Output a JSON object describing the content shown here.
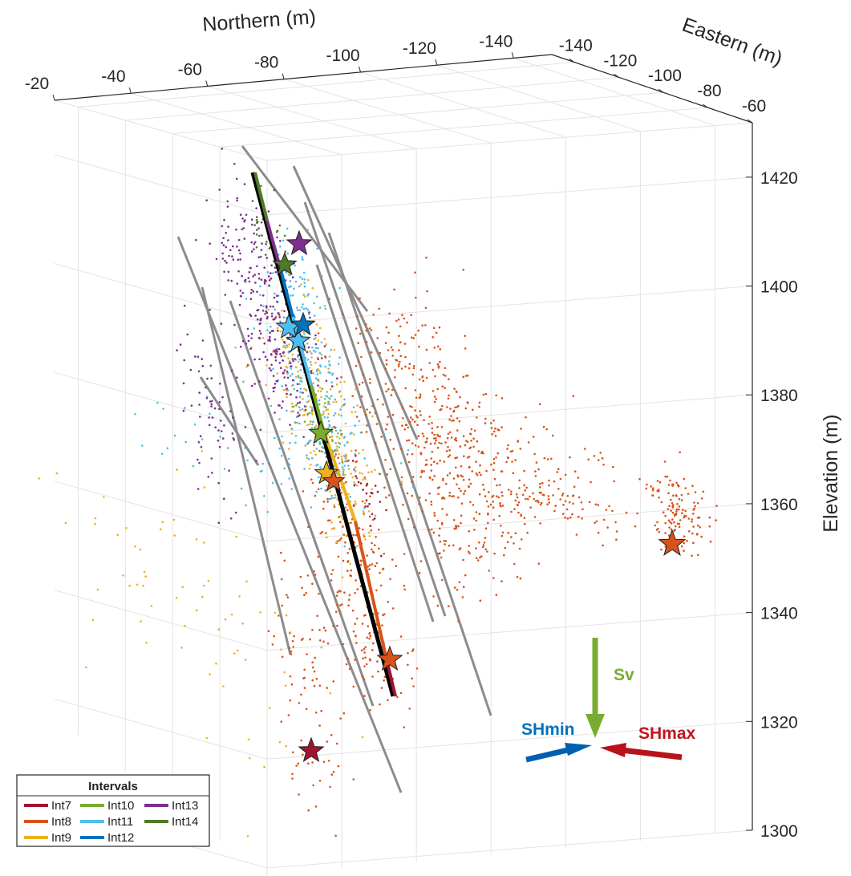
{
  "chart_data": {
    "type": "scatter",
    "title": "",
    "xlabel": "Northern (m)",
    "ylabel": "Eastern (m)",
    "zlabel": "Elevation (m)",
    "xlim": [
      -20,
      -150
    ],
    "ylim": [
      -150,
      -60
    ],
    "zlim": [
      1300,
      1430
    ],
    "xticks": [
      -20,
      -40,
      -60,
      -80,
      -100,
      -120,
      -140
    ],
    "yticks": [
      -140,
      -120,
      -100,
      -80,
      -60
    ],
    "zticks": [
      1300,
      1320,
      1340,
      1360,
      1380,
      1400,
      1420
    ],
    "grid": true,
    "legend": {
      "title": "Intervals",
      "placement": "bottom-left",
      "entries": [
        "Int7",
        "Int8",
        "Int9",
        "Int10",
        "Int11",
        "Int12",
        "Int13",
        "Int14"
      ]
    },
    "series": [
      {
        "name": "Int7",
        "color": "#a2142f"
      },
      {
        "name": "Int8",
        "color": "#d95319"
      },
      {
        "name": "Int9",
        "color": "#edb120"
      },
      {
        "name": "Int10",
        "color": "#77ac30"
      },
      {
        "name": "Int11",
        "color": "#4dbeee"
      },
      {
        "name": "Int12",
        "color": "#0072bd"
      },
      {
        "name": "Int13",
        "color": "#7e2f8e"
      },
      {
        "name": "Int14",
        "color": "#4f7a28"
      }
    ],
    "stress_labels": [
      {
        "label": "Sv",
        "color": "#77ac30"
      },
      {
        "label": "SHmin",
        "color": "#0072bd"
      },
      {
        "label": "SHmax",
        "color": "#c0141e"
      }
    ]
  }
}
